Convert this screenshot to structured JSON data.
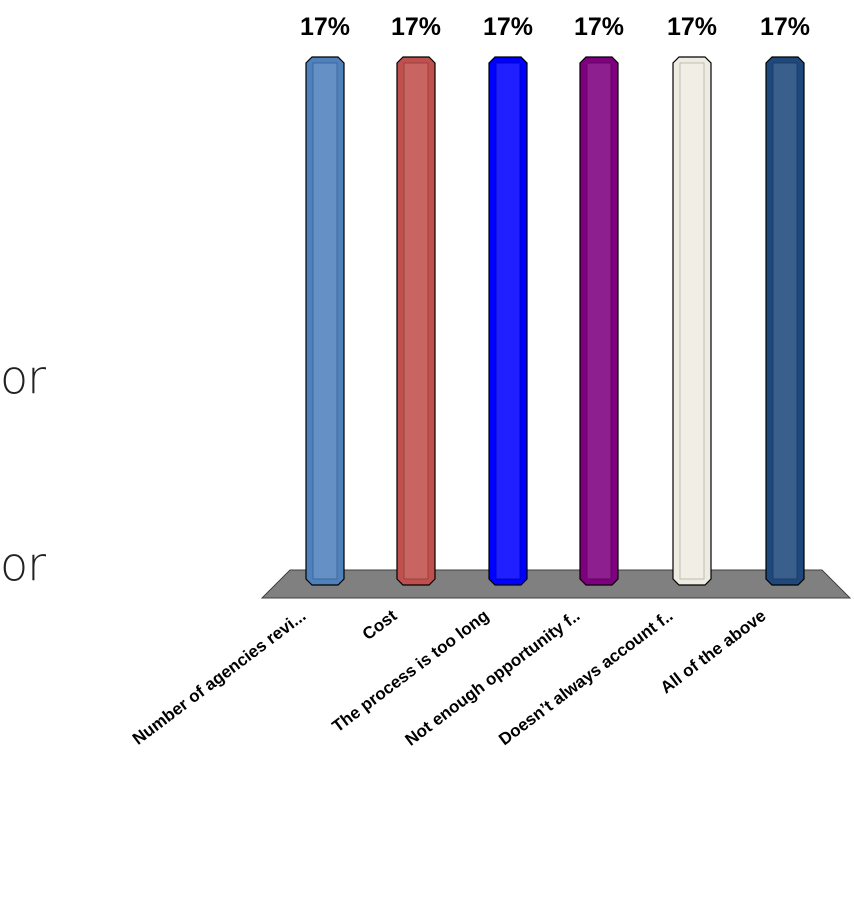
{
  "slide": {
    "fragments": [
      "or",
      "or"
    ]
  },
  "chart_data": {
    "type": "bar",
    "categories": [
      "Number of agencies revi...",
      "Cost",
      "The process is too long",
      "Not enough opportunity f..",
      "Doesn’t always account f..",
      "All of the above"
    ],
    "values": [
      17,
      17,
      17,
      17,
      17,
      17
    ],
    "data_labels": [
      "17%",
      "17%",
      "17%",
      "17%",
      "17%",
      "17%"
    ],
    "colors": [
      "#4f81bd",
      "#c0504d",
      "#0000ff",
      "#7f007f",
      "#eeece1",
      "#1f497d"
    ],
    "floor_color": "#808080",
    "ylim": [
      0,
      17
    ],
    "grid": false,
    "legend": "none",
    "title": "",
    "xlabel": "",
    "ylabel": ""
  }
}
